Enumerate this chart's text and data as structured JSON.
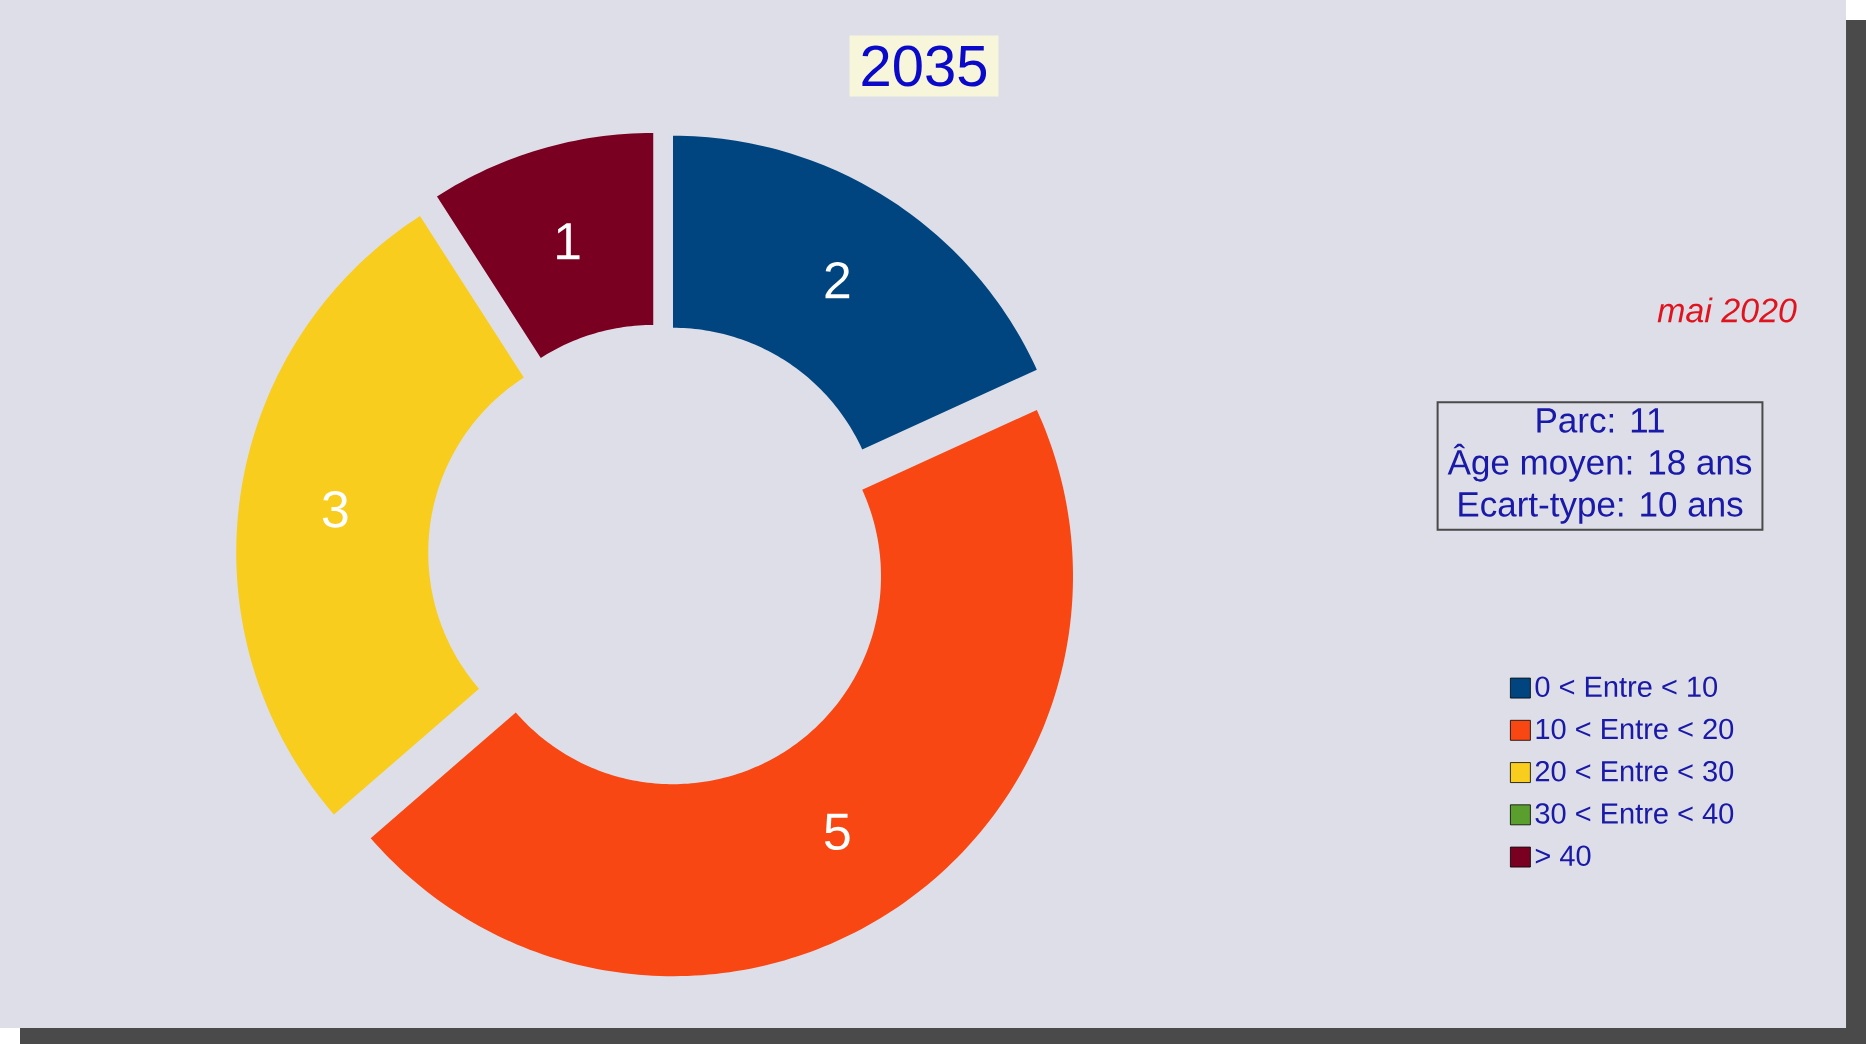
{
  "chart_data": {
    "type": "donut",
    "title": "2035",
    "categories": [
      "0 < Entre < 10",
      "10 < Entre < 20",
      "20 < Entre < 30",
      "30 < Entre < 40",
      "> 40"
    ],
    "values": [
      2,
      5,
      3,
      0,
      1
    ],
    "colors": [
      "#00457f",
      "#f84713",
      "#f8cd1e",
      "#5a9e2e",
      "#7a0022"
    ],
    "value_labels": [
      "2",
      "5",
      "3",
      null,
      "1"
    ],
    "legend": "right",
    "annotations": [
      "mai 2020",
      "Parc: 11",
      "Âge moyen: 18 ans",
      "Ecart-type: 10 ans"
    ]
  }
}
